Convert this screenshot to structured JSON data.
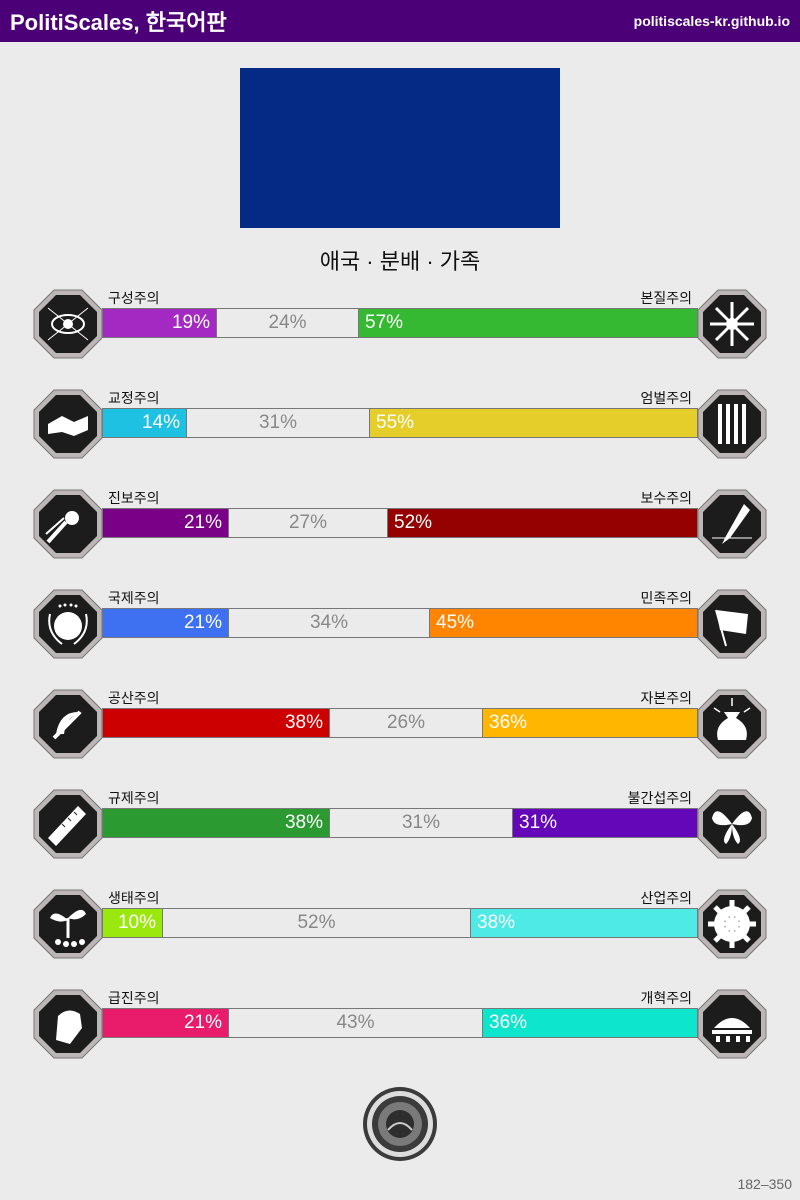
{
  "header": {
    "title": "PolitiScales, 한국어판",
    "url": "politiscales-kr.github.io"
  },
  "flag": {
    "color": "#052a86"
  },
  "slogan": "애국 · 분배 · 가족",
  "axes": [
    {
      "left_label": "구성주의",
      "right_label": "본질주의",
      "left": 19,
      "center": 24,
      "right": 57,
      "left_text": "19%",
      "center_text": "24%",
      "right_text": "57%",
      "left_color": "#a329c2",
      "right_color": "#35b832",
      "left_icon": "eye-icon",
      "right_icon": "flower-icon"
    },
    {
      "left_label": "교정주의",
      "right_label": "엄벌주의",
      "left": 14,
      "center": 31,
      "right": 55,
      "left_text": "14%",
      "center_text": "31%",
      "right_text": "55%",
      "left_color": "#1fc1e3",
      "right_color": "#e5cd2a",
      "left_icon": "handshake-icon",
      "right_icon": "prison-bars-icon"
    },
    {
      "left_label": "진보주의",
      "right_label": "보수주의",
      "left": 21,
      "center": 27,
      "right": 52,
      "left_text": "21%",
      "center_text": "27%",
      "right_text": "52%",
      "left_color": "#7a0087",
      "right_color": "#950000",
      "left_icon": "comet-icon",
      "right_icon": "quill-icon"
    },
    {
      "left_label": "국제주의",
      "right_label": "민족주의",
      "left": 21,
      "center": 34,
      "right": 45,
      "left_text": "21%",
      "center_text": "34%",
      "right_text": "45%",
      "left_color": "#3d71f2",
      "right_color": "#ff8400",
      "left_icon": "globe-laurel-icon",
      "right_icon": "flag-icon"
    },
    {
      "left_label": "공산주의",
      "right_label": "자본주의",
      "left": 38,
      "center": 26,
      "right": 36,
      "left_text": "38%",
      "center_text": "26%",
      "right_text": "36%",
      "left_color": "#cc0000",
      "right_color": "#ffb600",
      "left_icon": "hammer-sickle-icon",
      "right_icon": "money-bag-icon"
    },
    {
      "left_label": "규제주의",
      "right_label": "불간섭주의",
      "left": 38,
      "center": 31,
      "right": 31,
      "left_text": "38%",
      "center_text": "31%",
      "right_text": "31%",
      "left_color": "#2a9a31",
      "right_color": "#6407b8",
      "left_icon": "ruler-icon",
      "right_icon": "butterfly-icon"
    },
    {
      "left_label": "생태주의",
      "right_label": "산업주의",
      "left": 10,
      "center": 52,
      "right": 38,
      "left_text": "10%",
      "center_text": "52%",
      "right_text": "38%",
      "left_color": "#9be80f",
      "right_color": "#4deae6",
      "left_icon": "sprout-icon",
      "right_icon": "gear-icon"
    },
    {
      "left_label": "급진주의",
      "right_label": "개혁주의",
      "left": 21,
      "center": 43,
      "right": 36,
      "left_text": "21%",
      "center_text": "43%",
      "right_text": "36%",
      "left_color": "#e81c6a",
      "right_color": "#0ee5cd",
      "left_icon": "fist-icon",
      "right_icon": "parliament-icon"
    }
  ],
  "seal": {
    "icon": "seal-emblem-icon"
  },
  "footer": {
    "range": "182–350"
  }
}
